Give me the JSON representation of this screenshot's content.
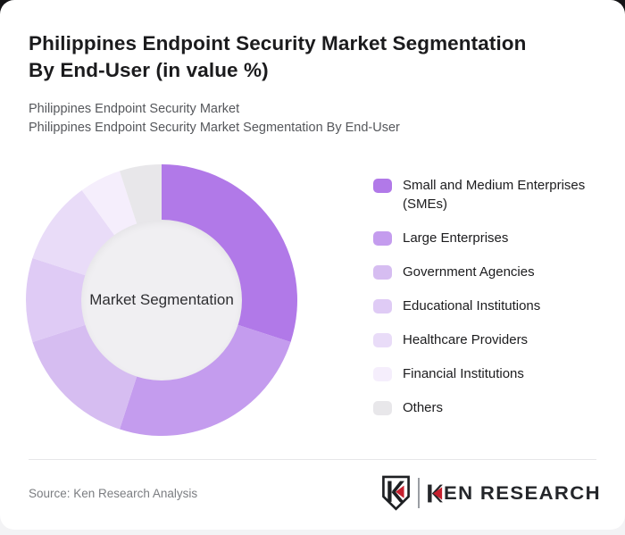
{
  "header": {
    "title": "Philippines Endpoint Security Market Segmentation By End-User (in value %)",
    "title_line1": "Philippines Endpoint Security Market Segmentation",
    "title_line2": "By End-User (in value %)",
    "subtitle_line1": "Philippines Endpoint Security Market",
    "subtitle_line2": "Philippines Endpoint Security Market Segmentation By End-User"
  },
  "chart_data": {
    "type": "pie",
    "donut": true,
    "title": "Philippines Endpoint Security Market Segmentation By End-User (in value %)",
    "center_label": "Market Segmentation",
    "categories": [
      "Small and Medium Enterprises (SMEs)",
      "Large Enterprises",
      "Government Agencies",
      "Educational Institutions",
      "Healthcare Providers",
      "Financial Institutions",
      "Others"
    ],
    "values": [
      30,
      25,
      15,
      10,
      10,
      5,
      5
    ],
    "unit": "%",
    "colors": [
      "#b179e8",
      "#c49cee",
      "#d6bdf1",
      "#dfcbf5",
      "#e9dcf8",
      "#f5eefc",
      "#e8e7ea"
    ],
    "hole_color": "#f0eff2",
    "start_angle_deg": 0,
    "direction": "clockwise",
    "legend_position": "right"
  },
  "footer": {
    "source": "Source: Ken Research Analysis",
    "logo_text_rest": "EN RESEARCH",
    "logo_colors": {
      "dark": "#1d1f22",
      "red": "#c5202e"
    }
  }
}
